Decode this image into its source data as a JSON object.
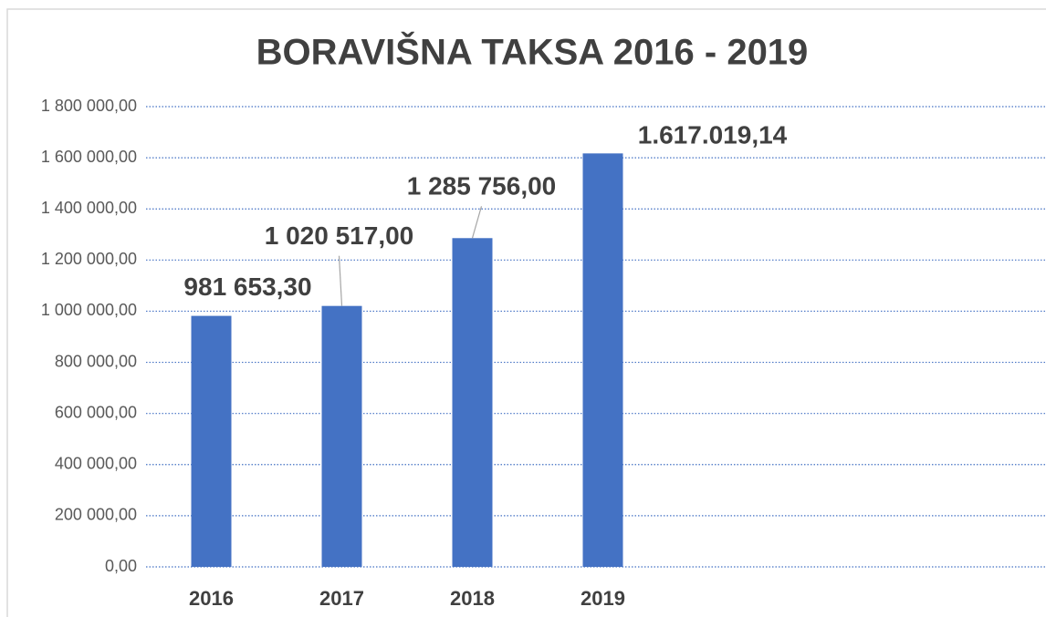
{
  "chart_data": {
    "type": "bar",
    "title": "BORAVIŠNA TAKSA 2016 - 2019",
    "categories": [
      "2016",
      "2017",
      "2018",
      "2019"
    ],
    "values": [
      981653.3,
      1020517.0,
      1285756.0,
      1617019.14
    ],
    "value_labels": [
      "981 653,30",
      "1 020 517,00",
      "1 285 756,00",
      "1.617.019,14"
    ],
    "color": "#4472c4",
    "ylim": [
      0,
      1800000
    ],
    "yticks": [
      {
        "value": 0,
        "label": "0,00"
      },
      {
        "value": 200000,
        "label": "200 000,00"
      },
      {
        "value": 400000,
        "label": "400 000,00"
      },
      {
        "value": 600000,
        "label": "600 000,00"
      },
      {
        "value": 800000,
        "label": "800 000,00"
      },
      {
        "value": 1000000,
        "label": "1 000 000,00"
      },
      {
        "value": 1200000,
        "label": "1 200 000,00"
      },
      {
        "value": 1400000,
        "label": "1 400 000,00"
      },
      {
        "value": 1600000,
        "label": "1 600 000,00"
      },
      {
        "value": 1800000,
        "label": "1 800 000,00"
      }
    ],
    "grid": true
  }
}
